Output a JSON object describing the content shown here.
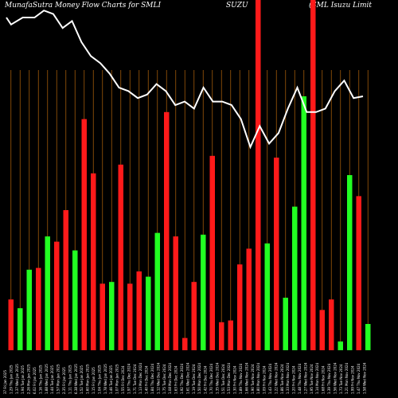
{
  "header": {
    "left": "MunafaSutra  Money Flow  Charts for SMLI",
    "middle": "SUZU",
    "right": "(SML  Isuzu  Limit"
  },
  "colors": {
    "up": "#22ff22",
    "down": "#ff1a1a",
    "grid": "#a05a0a",
    "line": "#ffffff",
    "background": "#000000"
  },
  "chart_data": {
    "type": "bar",
    "grid": "vertical",
    "ylim": [
      0,
      100
    ],
    "categories": [
      "37 Fri Jan 2025",
      "1.29 Thu Jan 2025",
      "1.37 Wed Jan 2025",
      "1.94 Tue Jan 2025",
      "2.26 Mon Jan 2025",
      "6.02 Fri Jan 2025",
      "1.16 Thu Jan 2025",
      "1.88 Wed Jan 2025",
      "1.44 Tue Jan 2025",
      "1.57 Mon Jan 2025",
      "2.35 Fri Jan 2025",
      "1.11 Thu Jan 2025",
      "6.38 Wed Jan 2025",
      "1.52 Tue Jan 2025",
      "1.60 Mon Jan 2025",
      "1.15 Fri Jan 2025",
      "1.04 Thu Jan 2025",
      "1.78 Wed Jan 2025",
      "1.46 Tue Jan 2025",
      "1.07 Mon Jan 2025",
      "1.55 Fri Dec 2024",
      "1.97 Thu Dec 2024",
      "1.71 Tue Dec 2024",
      "1.13 Mon Dec 2024",
      "1.40 Fri Dec 2024",
      "1.84 Thu Dec 2024",
      "1.12 Wed Dec 2024",
      "1.75 Tue Dec 2024",
      "1.08 Mon Dec 2024",
      "1.63 Fri Dec 2024",
      "1.92 Thu Dec 2024",
      "1.61 Wed Dec 2024",
      "1.19 Tue Dec 2024",
      "1.50 Mon Dec 2024",
      "1.42 Fri Dec 2024",
      "1.70 Thu Dec 2024",
      "1.35 Wed Dec 2024",
      "1.51 Tue Dec 2024",
      "1.53 Mon Dec 2024",
      "1.30 Fri Nov 2024",
      "1.89 Thu Nov 2024",
      "1.66 Wed Nov 2024",
      "1.90 Tue Nov 2024",
      "1.80 Mon Nov 2024",
      "1.09 Fri Nov 2024",
      "1.43 Thu Nov 2024",
      "1.22 Wed Nov 2024",
      "1.86 Tue Nov 2024",
      "1.33 Mon Nov 2024",
      "1.20 Fri Nov 2024",
      "1.48 Thu Nov 2024",
      "1.27 Wed Nov 2024",
      "1.95 Tue Nov 2024",
      "1.14 Mon Nov 2024",
      "1.68 Fri Nov 2024",
      "1.39 Thu Nov 2024",
      "1.56 Wed Nov 2024",
      "1.73 Tue Nov 2024",
      "1.21 Mon Nov 2024",
      "1.99 Fri Nov 2024",
      "1.47 Thu Nov 2024",
      "1.58 Wed Nov 2024"
    ],
    "bars": [
      {
        "value": 14.5,
        "dir": "down"
      },
      {
        "value": 12,
        "dir": "up"
      },
      {
        "value": 23,
        "dir": "up"
      },
      {
        "value": 23.5,
        "dir": "down"
      },
      {
        "value": 32.5,
        "dir": "up"
      },
      {
        "value": 31,
        "dir": "down"
      },
      {
        "value": 40,
        "dir": "down"
      },
      {
        "value": 28.5,
        "dir": "up"
      },
      {
        "value": 66,
        "dir": "down"
      },
      {
        "value": 50.5,
        "dir": "down"
      },
      {
        "value": 19,
        "dir": "down"
      },
      {
        "value": 19.5,
        "dir": "up"
      },
      {
        "value": 53,
        "dir": "down"
      },
      {
        "value": 19,
        "dir": "down"
      },
      {
        "value": 22.5,
        "dir": "down"
      },
      {
        "value": 21,
        "dir": "up"
      },
      {
        "value": 33.5,
        "dir": "up"
      },
      {
        "value": 68,
        "dir": "down"
      },
      {
        "value": 32.5,
        "dir": "down"
      },
      {
        "value": 3.5,
        "dir": "down"
      },
      {
        "value": 19.5,
        "dir": "down"
      },
      {
        "value": 33,
        "dir": "up"
      },
      {
        "value": 55.5,
        "dir": "down"
      },
      {
        "value": 8,
        "dir": "down"
      },
      {
        "value": 8.5,
        "dir": "down"
      },
      {
        "value": 24.5,
        "dir": "down"
      },
      {
        "value": 29,
        "dir": "down"
      },
      {
        "value": 100,
        "dir": "down"
      },
      {
        "value": 30.5,
        "dir": "up"
      },
      {
        "value": 55,
        "dir": "down"
      },
      {
        "value": 15,
        "dir": "up"
      },
      {
        "value": 41,
        "dir": "up"
      },
      {
        "value": 72.5,
        "dir": "up"
      },
      {
        "value": 100,
        "dir": "down"
      },
      {
        "value": 11.5,
        "dir": "down"
      },
      {
        "value": 14.5,
        "dir": "down"
      },
      {
        "value": 2.5,
        "dir": "up"
      },
      {
        "value": 50,
        "dir": "up"
      },
      {
        "value": 44,
        "dir": "down"
      },
      {
        "value": 7.5,
        "dir": "up"
      }
    ],
    "line": [
      {
        "x": 0,
        "y": 95
      },
      {
        "x": 2,
        "y": 93
      },
      {
        "x": 7,
        "y": 95
      },
      {
        "x": 12,
        "y": 95
      },
      {
        "x": 16,
        "y": 97
      },
      {
        "x": 20,
        "y": 96
      },
      {
        "x": 24,
        "y": 92
      },
      {
        "x": 28,
        "y": 94
      },
      {
        "x": 32,
        "y": 88
      },
      {
        "x": 36,
        "y": 84
      },
      {
        "x": 40,
        "y": 82
      },
      {
        "x": 44,
        "y": 79
      },
      {
        "x": 48,
        "y": 75
      },
      {
        "x": 52,
        "y": 74
      },
      {
        "x": 56,
        "y": 72
      },
      {
        "x": 60,
        "y": 73
      },
      {
        "x": 64,
        "y": 76
      },
      {
        "x": 68,
        "y": 74
      },
      {
        "x": 72,
        "y": 70
      },
      {
        "x": 76,
        "y": 71
      },
      {
        "x": 80,
        "y": 69
      },
      {
        "x": 84,
        "y": 75
      },
      {
        "x": 88,
        "y": 71
      },
      {
        "x": 92,
        "y": 71
      },
      {
        "x": 96,
        "y": 70
      },
      {
        "x": 100,
        "y": 66
      },
      {
        "x": 104,
        "y": 58
      },
      {
        "x": 108,
        "y": 64
      },
      {
        "x": 112,
        "y": 59
      },
      {
        "x": 116,
        "y": 62
      },
      {
        "x": 120,
        "y": 69
      },
      {
        "x": 124,
        "y": 75
      },
      {
        "x": 128,
        "y": 68
      },
      {
        "x": 132,
        "y": 68
      },
      {
        "x": 136,
        "y": 69
      },
      {
        "x": 140,
        "y": 74
      },
      {
        "x": 144,
        "y": 77
      },
      {
        "x": 148,
        "y": 72
      },
      {
        "x": 152,
        "y": 72.5
      }
    ]
  }
}
